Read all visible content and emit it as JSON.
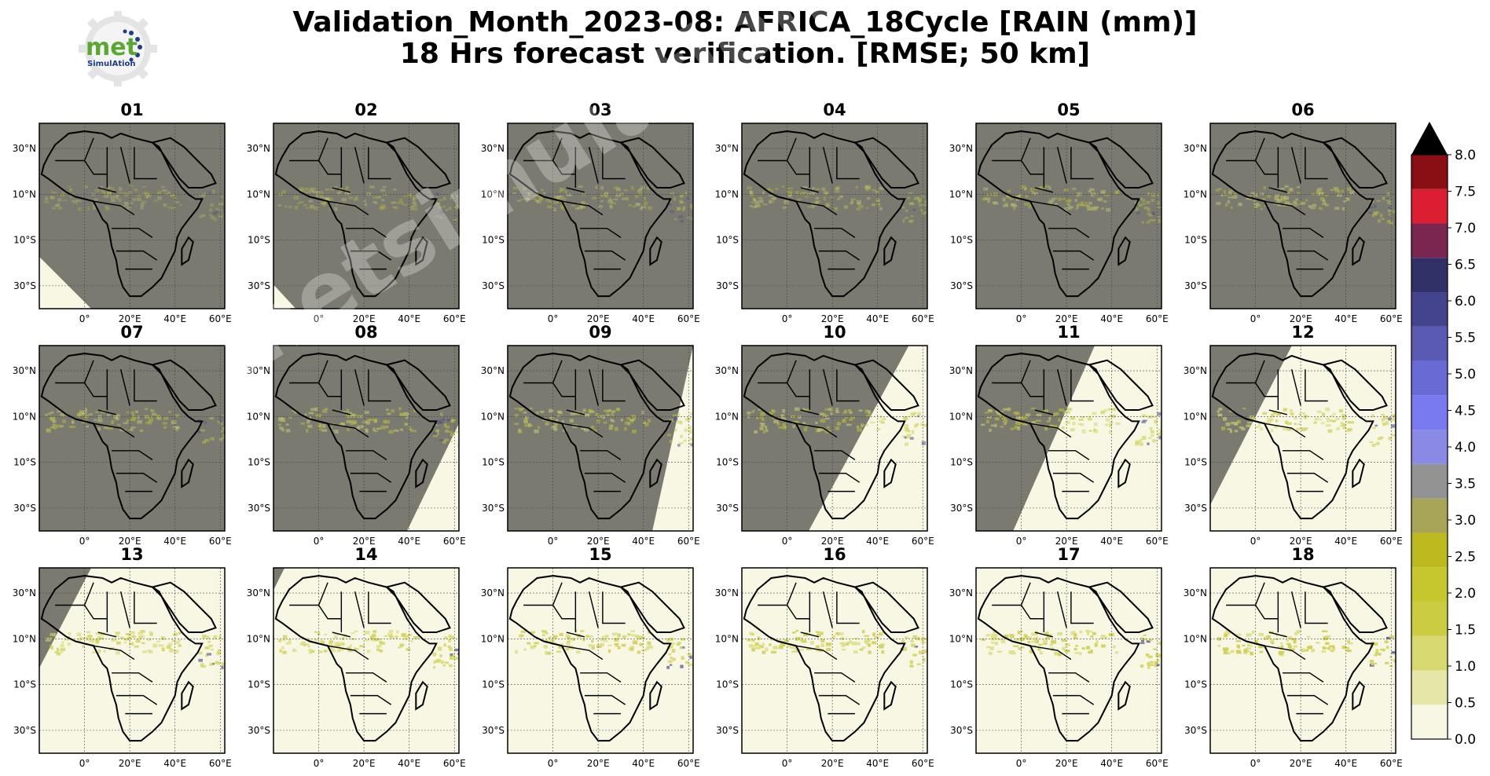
{
  "title": {
    "line1": "Validation_Month_2023-08: AFRICA_18Cycle [RAIN (mm)]",
    "line2": "18 Hrs forecast verification.  [RMSE; 50 km]"
  },
  "logo": {
    "text_main": "met",
    "text_sub": "SimulAtion",
    "color_green": "#5aa832",
    "color_blue": "#1f3b8c"
  },
  "watermark": "metsimulation.com",
  "panels": [
    {
      "label": "01",
      "terminator": [
        [
          0.0,
          0.72
        ],
        [
          0.28,
          1.0
        ]
      ]
    },
    {
      "label": "02",
      "terminator": [
        [
          0.0,
          0.87
        ],
        [
          0.12,
          1.0
        ]
      ]
    },
    {
      "label": "03",
      "terminator": null
    },
    {
      "label": "04",
      "terminator": null
    },
    {
      "label": "05",
      "terminator": null
    },
    {
      "label": "06",
      "terminator": null
    },
    {
      "label": "07",
      "terminator": null
    },
    {
      "label": "08",
      "terminator": [
        [
          1.0,
          0.42
        ],
        [
          0.72,
          1.0
        ]
      ]
    },
    {
      "label": "09",
      "terminator": [
        [
          1.0,
          0.0
        ],
        [
          0.78,
          1.0
        ]
      ]
    },
    {
      "label": "10",
      "terminator": [
        [
          0.9,
          0.0
        ],
        [
          0.36,
          1.0
        ]
      ]
    },
    {
      "label": "11",
      "terminator": [
        [
          0.64,
          0.0
        ],
        [
          0.2,
          1.0
        ]
      ]
    },
    {
      "label": "12",
      "terminator": [
        [
          0.44,
          0.0
        ],
        [
          0.0,
          0.86
        ]
      ]
    },
    {
      "label": "13",
      "terminator": [
        [
          0.28,
          0.0
        ],
        [
          0.0,
          0.54
        ]
      ]
    },
    {
      "label": "14",
      "terminator": [
        [
          0.06,
          0.0
        ],
        [
          0.0,
          0.12
        ]
      ]
    },
    {
      "label": "15",
      "terminator": null
    },
    {
      "label": "16",
      "terminator": null
    },
    {
      "label": "17",
      "terminator": null
    },
    {
      "label": "18",
      "terminator": null
    }
  ],
  "night_panels": [
    "03",
    "04",
    "05",
    "06",
    "07"
  ],
  "axes": {
    "lat_ticks": [
      {
        "value": 30,
        "label": "30°N"
      },
      {
        "value": 10,
        "label": "10°N"
      },
      {
        "value": -10,
        "label": "10°S"
      },
      {
        "value": -30,
        "label": "30°S"
      }
    ],
    "lon_ticks": [
      {
        "value": 0,
        "label": "0°"
      },
      {
        "value": 20,
        "label": "20°E"
      },
      {
        "value": 40,
        "label": "40°E"
      },
      {
        "value": 60,
        "label": "60°E"
      }
    ],
    "lon_range": [
      -20,
      62
    ],
    "lat_range": [
      -40,
      41
    ]
  },
  "colors": {
    "night_shade": "#7a7a70",
    "day_background": "#f7f7e4",
    "coast": "#000000"
  },
  "colorbar": {
    "ticks": [
      "8.0",
      "7.5",
      "7.0",
      "6.5",
      "6.0",
      "5.5",
      "5.0",
      "4.5",
      "4.0",
      "3.5",
      "3.0",
      "2.5",
      "2.0",
      "1.5",
      "1.0",
      "0.5",
      "0.0"
    ],
    "colors": [
      "#f7f7e4",
      "#e6e6a8",
      "#d8d870",
      "#cccc42",
      "#c6c62e",
      "#bdb81e",
      "#a8a458",
      "#939393",
      "#8a8ae6",
      "#7a7af0",
      "#6a6ad4",
      "#5a5ab4",
      "#44448e",
      "#313168",
      "#7a2650",
      "#dc1e32",
      "#880e14"
    ],
    "extend_color": "#000000"
  }
}
